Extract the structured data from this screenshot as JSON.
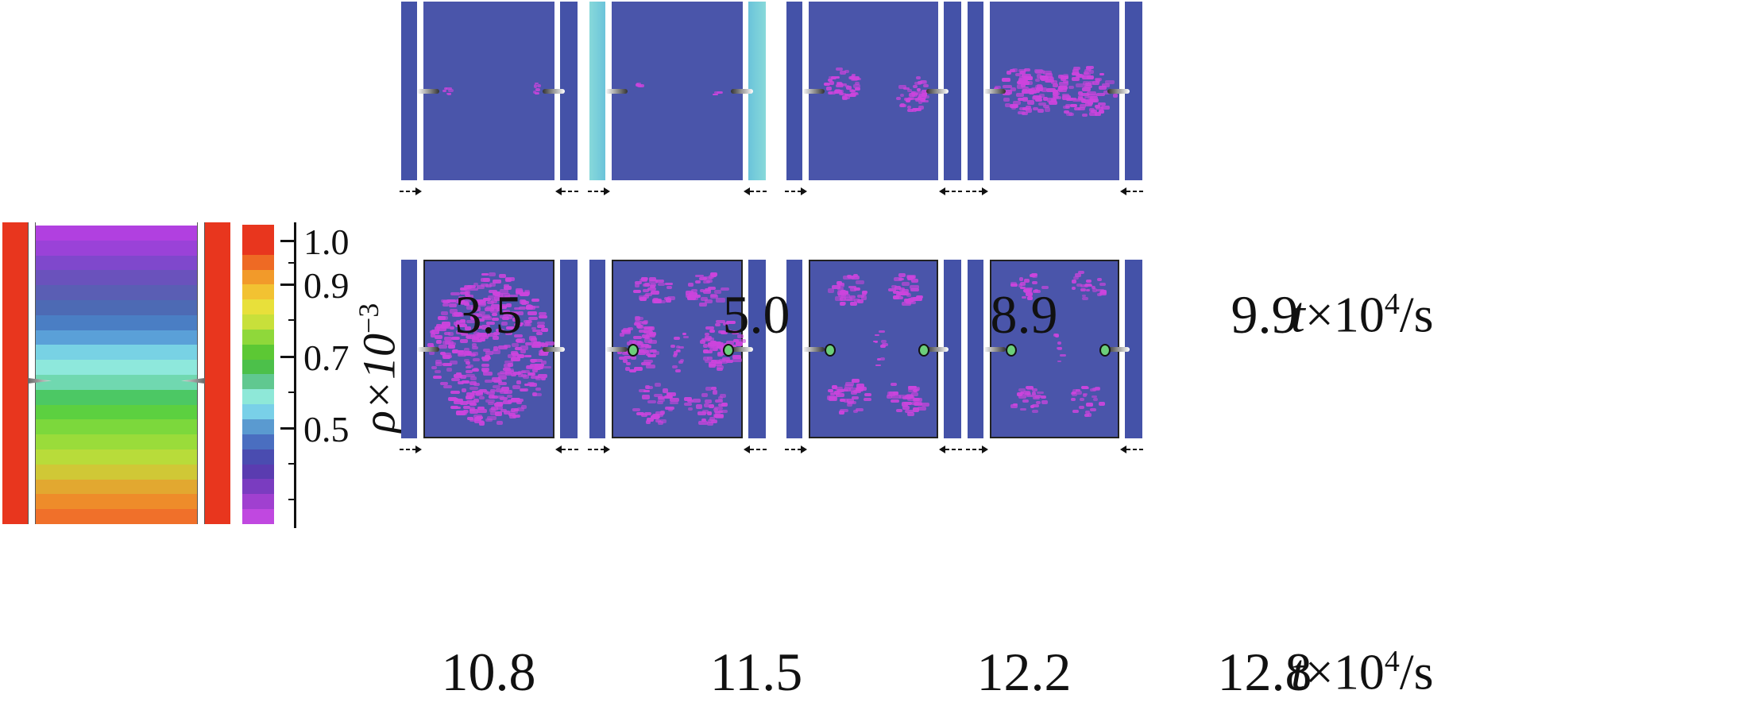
{
  "colorbar": {
    "axis_title": "ρ×10",
    "axis_exponent": "−3",
    "ticks": [
      "1.0",
      "0.9",
      "0.7",
      "0.5"
    ],
    "colors": [
      "#e8361e",
      "#e8361e",
      "#ee6a24",
      "#f29a2a",
      "#f2c232",
      "#e8e03a",
      "#c8e03a",
      "#8fd83a",
      "#5cc834",
      "#4cc04a",
      "#60c890",
      "#8ee8d8",
      "#79d0e8",
      "#5a9ad0",
      "#4a6ec0",
      "#4a4cb0",
      "#5a3cb0",
      "#7a3cc0",
      "#a040d0",
      "#c048e0"
    ]
  },
  "reference_slab": {
    "band_colors": [
      "#b140e0",
      "#9a42d8",
      "#7f48cc",
      "#6a52bc",
      "#5a5eb4",
      "#4d6ab4",
      "#4a7ec4",
      "#5aa0d8",
      "#78d2e4",
      "#8ee8dc",
      "#70d8b0",
      "#4cc864",
      "#5cd040",
      "#7cd83c",
      "#9adc3a",
      "#b8dc3a",
      "#d0c836",
      "#e2a830",
      "#ee8c2a",
      "#f0702a"
    ]
  },
  "time_unit": {
    "prefix": "t",
    "suffix": "×10",
    "exponent": "4",
    "unit": "/s"
  },
  "frames_row1": [
    {
      "time": "3.5"
    },
    {
      "time": "5.0"
    },
    {
      "time": "8.9"
    },
    {
      "time": "9.9"
    }
  ],
  "frames_row2": [
    {
      "time": "10.8"
    },
    {
      "time": "11.5"
    },
    {
      "time": "12.2"
    },
    {
      "time": "12.8"
    }
  ],
  "arrows": {
    "right": "- - ▸",
    "left": "◂ - -"
  },
  "colors": {
    "background": "#ffffff",
    "sim_field": "#4a55aa",
    "wall": "#4452a8",
    "hot_wall": "#e8361e",
    "damage": "#cc44dd",
    "edge_glow": "#8fe8e0"
  }
}
